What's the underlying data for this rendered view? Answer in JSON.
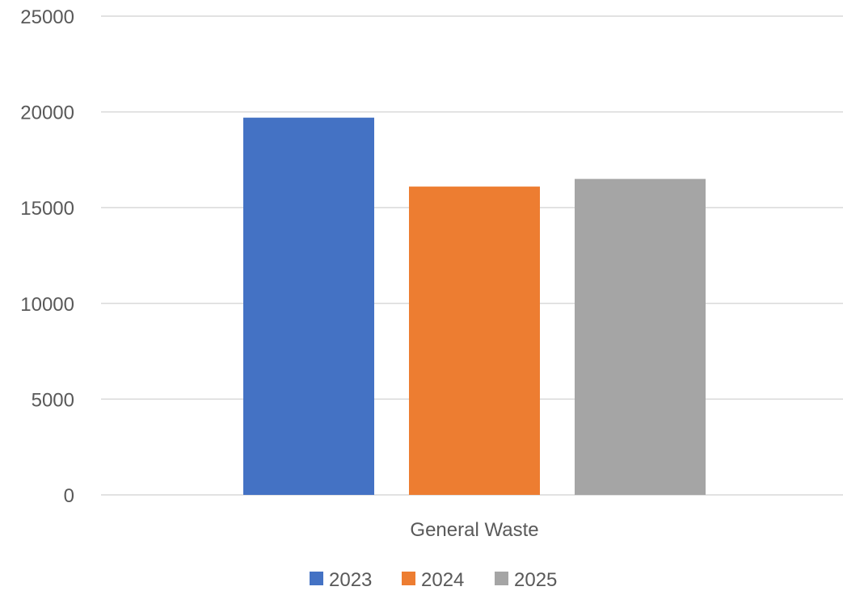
{
  "chart_data": {
    "type": "bar",
    "title": "",
    "xlabel": "",
    "ylabel": "",
    "categories": [
      "General Waste"
    ],
    "series": [
      {
        "name": "2023",
        "values": [
          19700
        ],
        "color": "#4472C4"
      },
      {
        "name": "2024",
        "values": [
          16100
        ],
        "color": "#ED7D31"
      },
      {
        "name": "2025",
        "values": [
          16500
        ],
        "color": "#A5A5A5"
      }
    ],
    "ylim": [
      0,
      25000
    ],
    "yticks": [
      0,
      5000,
      10000,
      15000,
      20000,
      25000
    ],
    "ytick_labels": [
      "0",
      "5000",
      "10000",
      "15000",
      "20000",
      "25000"
    ],
    "grid": true,
    "gridline_color": "#D9D9D9",
    "legend_position": "bottom"
  }
}
